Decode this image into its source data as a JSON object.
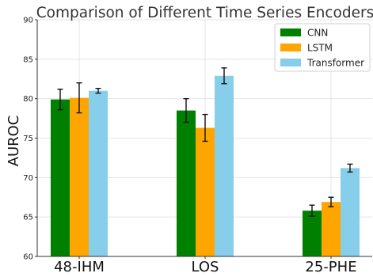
{
  "chart_data": {
    "type": "bar",
    "title": "Comparison of Different Time Series Encoders",
    "xlabel": "",
    "ylabel": "AUROC",
    "ylim": [
      60,
      90
    ],
    "yticks": [
      60,
      65,
      70,
      75,
      80,
      85,
      90
    ],
    "grid": true,
    "legend_position": "top-right",
    "categories": [
      "48-IHM",
      "LOS",
      "25-PHE"
    ],
    "series": [
      {
        "name": "CNN",
        "color": "#008000",
        "values": [
          79.9,
          78.5,
          65.8
        ],
        "errors": [
          1.3,
          1.5,
          0.7
        ]
      },
      {
        "name": "LSTM",
        "color": "#FFA500",
        "values": [
          80.1,
          76.3,
          66.9
        ],
        "errors": [
          1.9,
          1.7,
          0.6
        ]
      },
      {
        "name": "Transformer",
        "color": "#87CEEB",
        "values": [
          81.0,
          82.9,
          71.2
        ],
        "errors": [
          0.3,
          1.0,
          0.5
        ]
      }
    ]
  }
}
